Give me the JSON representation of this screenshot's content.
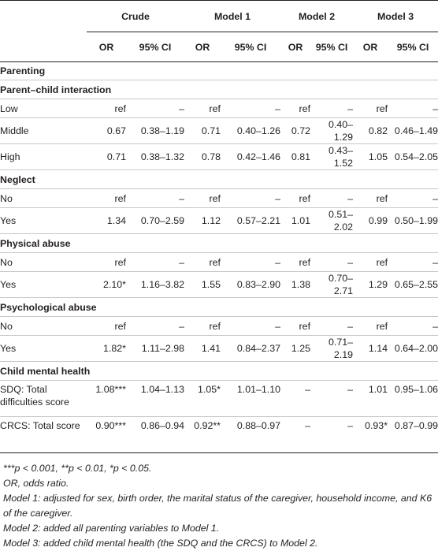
{
  "header": {
    "models": [
      "Crude",
      "Model 1",
      "Model 2",
      "Model 3"
    ],
    "or_label": "OR",
    "ci_label": "95% CI"
  },
  "rows": [
    {
      "label": "Parenting",
      "type": "section"
    },
    {
      "label": "Parent–child interaction",
      "type": "section"
    },
    {
      "label": "Low",
      "type": "row",
      "cells": [
        "ref",
        "–",
        "ref",
        "–",
        "ref",
        "–",
        "ref",
        "–"
      ]
    },
    {
      "label": "Middle",
      "type": "row",
      "cells": [
        "0.67",
        "0.38–1.19",
        "0.71",
        "0.40–1.26",
        "0.72",
        "0.40–1.29",
        "0.82",
        "0.46–1.49"
      ]
    },
    {
      "label": "High",
      "type": "row",
      "cells": [
        "0.71",
        "0.38–1.32",
        "0.78",
        "0.42–1.46",
        "0.81",
        "0.43–1.52",
        "1.05",
        "0.54–2.05"
      ]
    },
    {
      "label": "Neglect",
      "type": "section"
    },
    {
      "label": "No",
      "type": "row",
      "cells": [
        "ref",
        "–",
        "ref",
        "–",
        "ref",
        "–",
        "ref",
        "–"
      ]
    },
    {
      "label": "Yes",
      "type": "row",
      "cells": [
        "1.34",
        "0.70–2.59",
        "1.12",
        "0.57–2.21",
        "1.01",
        "0.51–2.02",
        "0.99",
        "0.50–1.99"
      ]
    },
    {
      "label": "Physical abuse",
      "type": "section"
    },
    {
      "label": "No",
      "type": "row",
      "cells": [
        "ref",
        "–",
        "ref",
        "–",
        "ref",
        "–",
        "ref",
        "–"
      ]
    },
    {
      "label": "Yes",
      "type": "row",
      "cells": [
        "2.10*",
        "1.16–3.82",
        "1.55",
        "0.83–2.90",
        "1.38",
        "0.70–2.71",
        "1.29",
        "0.65–2.55"
      ]
    },
    {
      "label": "Psychological abuse",
      "type": "section"
    },
    {
      "label": "No",
      "type": "row",
      "cells": [
        "ref",
        "–",
        "ref",
        "–",
        "ref",
        "–",
        "ref",
        "–"
      ]
    },
    {
      "label": "Yes",
      "type": "row",
      "cells": [
        "1.82*",
        "1.11–2.98",
        "1.41",
        "0.84–2.37",
        "1.25",
        "0.71–2.19",
        "1.14",
        "0.64–2.00"
      ]
    },
    {
      "label": "Child mental health",
      "type": "section"
    },
    {
      "label": "SDQ: Total difficulties score",
      "type": "tall",
      "cells": [
        "1.08***",
        "1.04–1.13",
        "1.05*",
        "1.01–1.10",
        "–",
        "–",
        "1.01",
        "0.95–1.06"
      ]
    },
    {
      "label": "CRCS: Total score",
      "type": "tall",
      "cells": [
        "0.90***",
        "0.86–0.94",
        "0.92**",
        "0.88–0.97",
        "–",
        "–",
        "0.93*",
        "0.87–0.99"
      ]
    }
  ],
  "footnotes": [
    "***p < 0.001, **p < 0.01, *p < 0.05.",
    "OR, odds ratio.",
    "Model 1: adjusted for sex, birth order, the marital status of the caregiver, household income, and K6 of the caregiver.",
    "Model 2: added all parenting variables to Model 1.",
    "Model 3: added child mental health (the SDQ and the CRCS) to Model 2."
  ]
}
